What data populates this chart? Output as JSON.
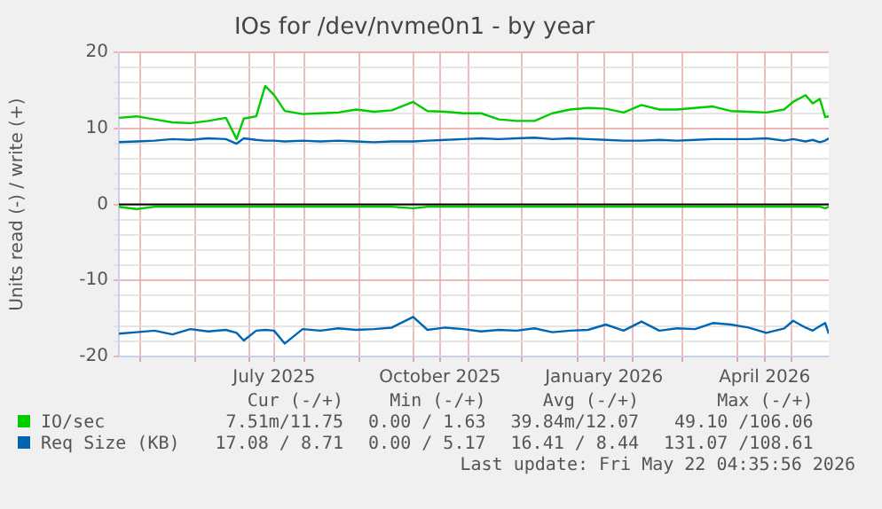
{
  "chart_data": {
    "type": "line",
    "title": "IOs for /dev/nvme0n1 - by year",
    "ylabel": "Units read (-) / write (+)",
    "x": [
      "2025-04-19",
      "2025-04-29",
      "2025-05-09",
      "2025-05-19",
      "2025-05-29",
      "2025-06-08",
      "2025-06-18",
      "2025-06-24",
      "2025-06-28",
      "2025-07-05",
      "2025-07-10",
      "2025-07-15",
      "2025-07-21",
      "2025-07-31",
      "2025-08-10",
      "2025-08-20",
      "2025-08-30",
      "2025-09-09",
      "2025-09-19",
      "2025-10-01",
      "2025-10-09",
      "2025-10-19",
      "2025-10-29",
      "2025-11-08",
      "2025-11-18",
      "2025-11-28",
      "2025-12-08",
      "2025-12-18",
      "2025-12-28",
      "2026-01-07",
      "2026-01-17",
      "2026-01-27",
      "2026-02-06",
      "2026-02-16",
      "2026-02-26",
      "2026-03-08",
      "2026-03-18",
      "2026-03-28",
      "2026-04-07",
      "2026-04-17",
      "2026-04-27",
      "2026-05-02",
      "2026-05-09",
      "2026-05-13",
      "2026-05-17",
      "2026-05-20",
      "2026-05-22"
    ],
    "series": [
      {
        "name": "IO/sec",
        "color": "#00cc00",
        "values": [
          11.4,
          11.6,
          11.2,
          10.8,
          10.7,
          11.0,
          11.4,
          8.6,
          11.3,
          11.6,
          15.6,
          14.4,
          12.3,
          11.9,
          12.0,
          12.1,
          12.5,
          12.2,
          12.4,
          13.5,
          12.3,
          12.2,
          12.0,
          12.0,
          11.2,
          11.0,
          11.0,
          12.0,
          12.5,
          12.7,
          12.6,
          12.1,
          13.1,
          12.5,
          12.5,
          12.7,
          12.9,
          12.3,
          12.2,
          12.1,
          12.5,
          13.5,
          14.4,
          13.3,
          13.9,
          11.5,
          11.6
        ]
      },
      {
        "color": "#00cc00",
        "values": [
          -0.3,
          -0.6,
          -0.3,
          -0.3,
          -0.3,
          -0.3,
          -0.3,
          -0.3,
          -0.3,
          -0.3,
          -0.3,
          -0.3,
          -0.3,
          -0.3,
          -0.3,
          -0.3,
          -0.3,
          -0.3,
          -0.3,
          -0.5,
          -0.3,
          -0.3,
          -0.3,
          -0.3,
          -0.3,
          -0.3,
          -0.3,
          -0.3,
          -0.3,
          -0.3,
          -0.3,
          -0.3,
          -0.3,
          -0.3,
          -0.3,
          -0.3,
          -0.3,
          -0.3,
          -0.3,
          -0.3,
          -0.3,
          -0.3,
          -0.3,
          -0.3,
          -0.3,
          -0.5,
          -0.3
        ]
      },
      {
        "name": "Req Size (KB)",
        "color": "#0066b3",
        "values": [
          8.2,
          8.3,
          8.4,
          8.6,
          8.5,
          8.7,
          8.6,
          8.0,
          8.7,
          8.5,
          8.4,
          8.4,
          8.3,
          8.4,
          8.3,
          8.4,
          8.3,
          8.2,
          8.3,
          8.3,
          8.4,
          8.5,
          8.6,
          8.7,
          8.6,
          8.7,
          8.8,
          8.6,
          8.7,
          8.6,
          8.5,
          8.4,
          8.4,
          8.5,
          8.4,
          8.5,
          8.6,
          8.6,
          8.6,
          8.7,
          8.4,
          8.6,
          8.3,
          8.5,
          8.2,
          8.4,
          8.7
        ]
      },
      {
        "color": "#0066b3",
        "values": [
          -17.0,
          -16.8,
          -16.6,
          -17.1,
          -16.4,
          -16.7,
          -16.5,
          -16.9,
          -17.9,
          -16.6,
          -16.5,
          -16.6,
          -18.3,
          -16.4,
          -16.6,
          -16.3,
          -16.5,
          -16.4,
          -16.2,
          -14.8,
          -16.5,
          -16.2,
          -16.4,
          -16.7,
          -16.5,
          -16.6,
          -16.3,
          -16.8,
          -16.6,
          -16.5,
          -15.8,
          -16.6,
          -15.4,
          -16.6,
          -16.3,
          -16.4,
          -15.6,
          -15.8,
          -16.2,
          -16.9,
          -16.3,
          -15.3,
          -16.2,
          -16.6,
          -16.0,
          -15.6,
          -17.0
        ]
      }
    ],
    "xlim": [
      "2025-04-19",
      "2026-05-22"
    ],
    "xticks": [
      {
        "value": "2025-05-01",
        "label": null
      },
      {
        "value": "2025-06-01",
        "label": null
      },
      {
        "value": "2025-07-01",
        "label": null
      },
      {
        "value": "2025-07-15",
        "label": "July 2025"
      },
      {
        "value": "2025-08-01",
        "label": null
      },
      {
        "value": "2025-09-01",
        "label": null
      },
      {
        "value": "2025-10-01",
        "label": null
      },
      {
        "value": "2025-10-16",
        "label": "October 2025"
      },
      {
        "value": "2025-11-01",
        "label": null
      },
      {
        "value": "2025-12-01",
        "label": null
      },
      {
        "value": "2026-01-01",
        "label": null
      },
      {
        "value": "2026-01-16",
        "label": "January 2026"
      },
      {
        "value": "2026-02-01",
        "label": null
      },
      {
        "value": "2026-03-01",
        "label": null
      },
      {
        "value": "2026-04-01",
        "label": null
      },
      {
        "value": "2026-04-16",
        "label": "April 2026"
      },
      {
        "value": "2026-05-01",
        "label": null
      }
    ],
    "ylim": [
      -20,
      20
    ],
    "yticks": [
      -20,
      {
        "value": -18,
        "label": null
      },
      {
        "value": -16,
        "label": null
      },
      {
        "value": -14,
        "label": null
      },
      {
        "value": -12,
        "label": null
      },
      -10,
      {
        "value": -8,
        "label": null
      },
      {
        "value": -6,
        "label": null
      },
      {
        "value": -4,
        "label": null
      },
      {
        "value": -2,
        "label": null
      },
      0,
      {
        "value": 2,
        "label": null
      },
      {
        "value": 4,
        "label": null
      },
      {
        "value": 6,
        "label": null
      },
      {
        "value": 8,
        "label": null
      },
      10,
      {
        "value": 12,
        "label": null
      },
      {
        "value": 14,
        "label": null
      },
      {
        "value": 16,
        "label": null
      },
      {
        "value": 18,
        "label": null
      },
      20
    ],
    "ref_lines": [
      {
        "axis": "y",
        "value": 0,
        "color": "#000000"
      }
    ],
    "grid": true,
    "legend": "bottom",
    "marker": "none",
    "line_style": "solid",
    "annotations": [
      "Cur (-/+)",
      "Min (-/+)",
      "Avg (-/+)",
      "Max (-/+)",
      "7.51m/11.75",
      "0.00 / 1.63",
      "39.84m/12.07",
      "49.10 /106.06",
      "17.08 / 8.71",
      "0.00 / 5.17",
      "16.41 / 8.44",
      "131.07 /108.61",
      "Last update: Fri May 22 04:35:56 2026"
    ]
  }
}
